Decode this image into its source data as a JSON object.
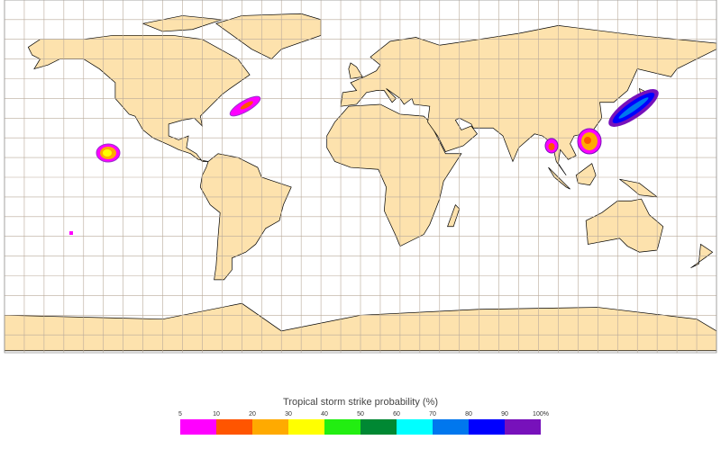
{
  "legend": {
    "title": "Tropical storm strike probability (%)",
    "ticks": [
      "5",
      "10",
      "20",
      "30",
      "40",
      "50",
      "60",
      "70",
      "80",
      "90",
      "100%"
    ],
    "colors": [
      "#ff00ff",
      "#ff5500",
      "#ffaa00",
      "#ffff00",
      "#22ee11",
      "#008833",
      "#00ffff",
      "#0077ee",
      "#0000ff",
      "#7711bb"
    ]
  }
}
